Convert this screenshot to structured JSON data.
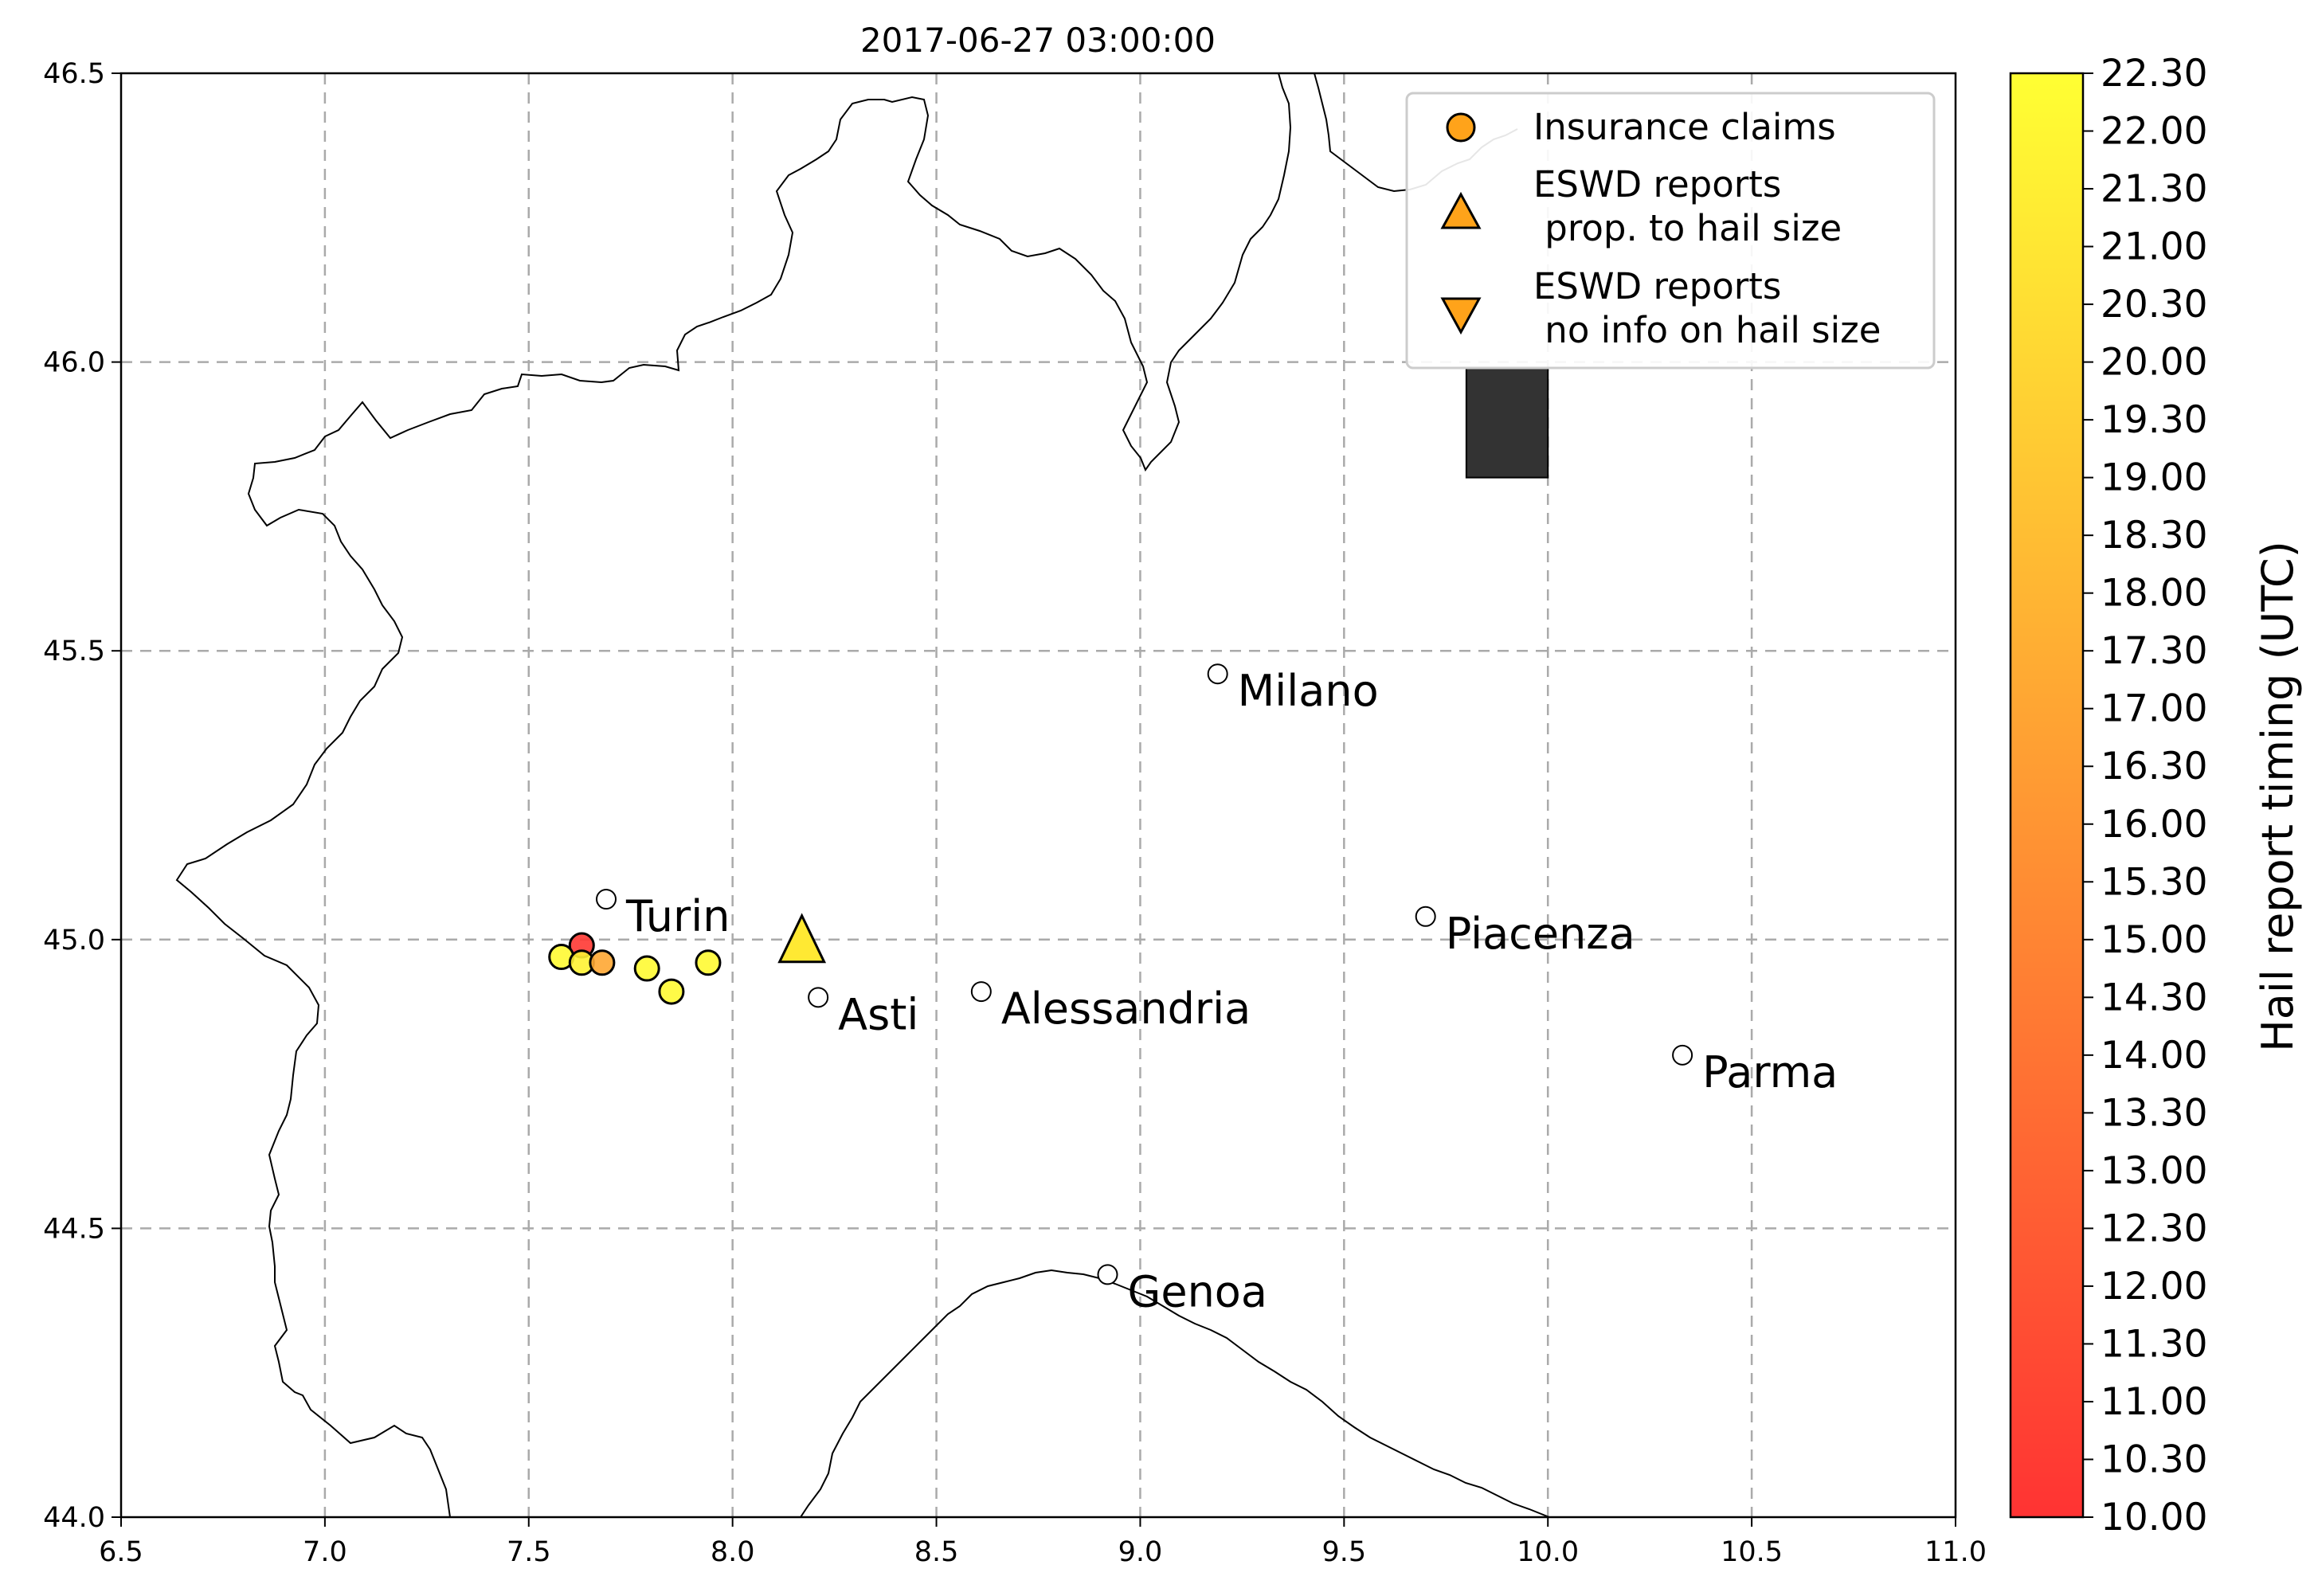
{
  "title": "2017-06-27 03:00:00",
  "chart_data": {
    "type": "map-scatter",
    "title": "2017-06-27 03:00:00",
    "xlim": [
      6.5,
      11.0
    ],
    "ylim": [
      44.0,
      46.5
    ],
    "xticks": [
      "6.5",
      "7.0",
      "7.5",
      "8.0",
      "8.5",
      "9.0",
      "9.5",
      "10.0",
      "10.5",
      "11.0"
    ],
    "yticks": [
      "44.0",
      "44.5",
      "45.0",
      "45.5",
      "46.0",
      "46.5"
    ],
    "grid": true,
    "cities": [
      {
        "name": "Turin",
        "lon": 7.69,
        "lat": 45.07
      },
      {
        "name": "Asti",
        "lon": 8.21,
        "lat": 44.9
      },
      {
        "name": "Alessandria",
        "lon": 8.61,
        "lat": 44.91
      },
      {
        "name": "Milano",
        "lon": 9.19,
        "lat": 45.46
      },
      {
        "name": "Piacenza",
        "lon": 9.7,
        "lat": 45.04
      },
      {
        "name": "Parma",
        "lon": 10.33,
        "lat": 44.8
      },
      {
        "name": "Genoa",
        "lon": 8.92,
        "lat": 44.42
      }
    ],
    "insurance_claims": [
      {
        "lon": 7.63,
        "lat": 44.99,
        "hour": 10.3
      },
      {
        "lon": 7.58,
        "lat": 44.97,
        "hour": 22.0
      },
      {
        "lon": 7.63,
        "lat": 44.96,
        "hour": 21.5
      },
      {
        "lon": 7.68,
        "lat": 44.96,
        "hour": 17.0
      },
      {
        "lon": 7.79,
        "lat": 44.95,
        "hour": 22.0
      },
      {
        "lon": 7.85,
        "lat": 44.91,
        "hour": 22.0
      },
      {
        "lon": 7.94,
        "lat": 44.96,
        "hour": 22.0
      }
    ],
    "eswd_reports": [
      {
        "lon": 8.17,
        "lat": 45.0,
        "hour": 21.0,
        "type": "prop. to hail size"
      }
    ],
    "radar_box": {
      "lon_min": 9.8,
      "lon_max": 10.0,
      "lat_min": 45.8,
      "lat_max": 45.99
    },
    "legend": [
      {
        "marker": "circle",
        "label": "Insurance claims"
      },
      {
        "marker": "triangle-up",
        "label": "ESWD reports\n prop. to hail size",
        "line1": "ESWD reports",
        "line2": " prop. to hail size"
      },
      {
        "marker": "triangle-down",
        "label": "ESWD reports\n no info on hail size",
        "line1": "ESWD reports",
        "line2": " no info on hail size"
      }
    ],
    "legend_position": "top-right",
    "colorbar": {
      "label": "Hail report timing (UTC)",
      "min": 10.0,
      "max": 22.3,
      "color_low": "#ff3333",
      "color_high": "#ffff33",
      "ticks": [
        "10.00",
        "10.30",
        "11.00",
        "11.30",
        "12.00",
        "12.30",
        "13.00",
        "13.30",
        "14.00",
        "14.30",
        "15.00",
        "15.30",
        "16.00",
        "16.30",
        "17.00",
        "17.30",
        "18.00",
        "18.30",
        "19.00",
        "19.30",
        "20.00",
        "20.30",
        "21.00",
        "21.30",
        "22.00",
        "22.30"
      ]
    }
  }
}
